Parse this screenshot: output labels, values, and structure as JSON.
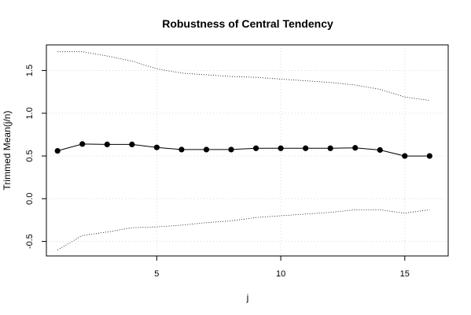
{
  "chart_data": {
    "type": "line",
    "title": "Robustness of Central Tendency",
    "xlabel": "j",
    "ylabel": "Trimmed Mean(j/n)",
    "xlim": [
      0.55,
      16.75
    ],
    "ylim": [
      -0.67,
      1.8
    ],
    "x_ticks": [
      5,
      10,
      15
    ],
    "y_ticks": [
      -0.5,
      0.0,
      0.5,
      1.0,
      1.5
    ],
    "y_tick_labels": [
      "-0.5",
      "0.0",
      "0.5",
      "1.0",
      "1.5"
    ],
    "grid": true,
    "series": [
      {
        "role": "trimmed-mean",
        "style": "solid-with-points",
        "x": [
          1,
          2,
          3,
          4,
          5,
          6,
          7,
          8,
          9,
          10,
          11,
          12,
          13,
          14,
          15,
          16
        ],
        "values": [
          0.56,
          0.64,
          0.635,
          0.635,
          0.6,
          0.575,
          0.575,
          0.575,
          0.59,
          0.59,
          0.59,
          0.59,
          0.595,
          0.57,
          0.5,
          0.5
        ]
      },
      {
        "role": "upper-bound",
        "style": "dotted",
        "x": [
          1,
          2,
          3,
          4,
          5,
          6,
          7,
          8,
          9,
          10,
          11,
          12,
          13,
          14,
          15,
          16
        ],
        "values": [
          1.72,
          1.72,
          1.67,
          1.61,
          1.52,
          1.47,
          1.45,
          1.43,
          1.42,
          1.4,
          1.38,
          1.36,
          1.33,
          1.28,
          1.19,
          1.15
        ]
      },
      {
        "role": "lower-bound",
        "style": "dotted",
        "x": [
          1,
          2,
          3,
          4,
          5,
          6,
          7,
          8,
          9,
          10,
          11,
          12,
          13,
          14,
          15,
          16
        ],
        "values": [
          -0.6,
          -0.43,
          -0.39,
          -0.34,
          -0.33,
          -0.31,
          -0.28,
          -0.26,
          -0.22,
          -0.2,
          -0.18,
          -0.16,
          -0.13,
          -0.13,
          -0.17,
          -0.13
        ]
      }
    ]
  }
}
